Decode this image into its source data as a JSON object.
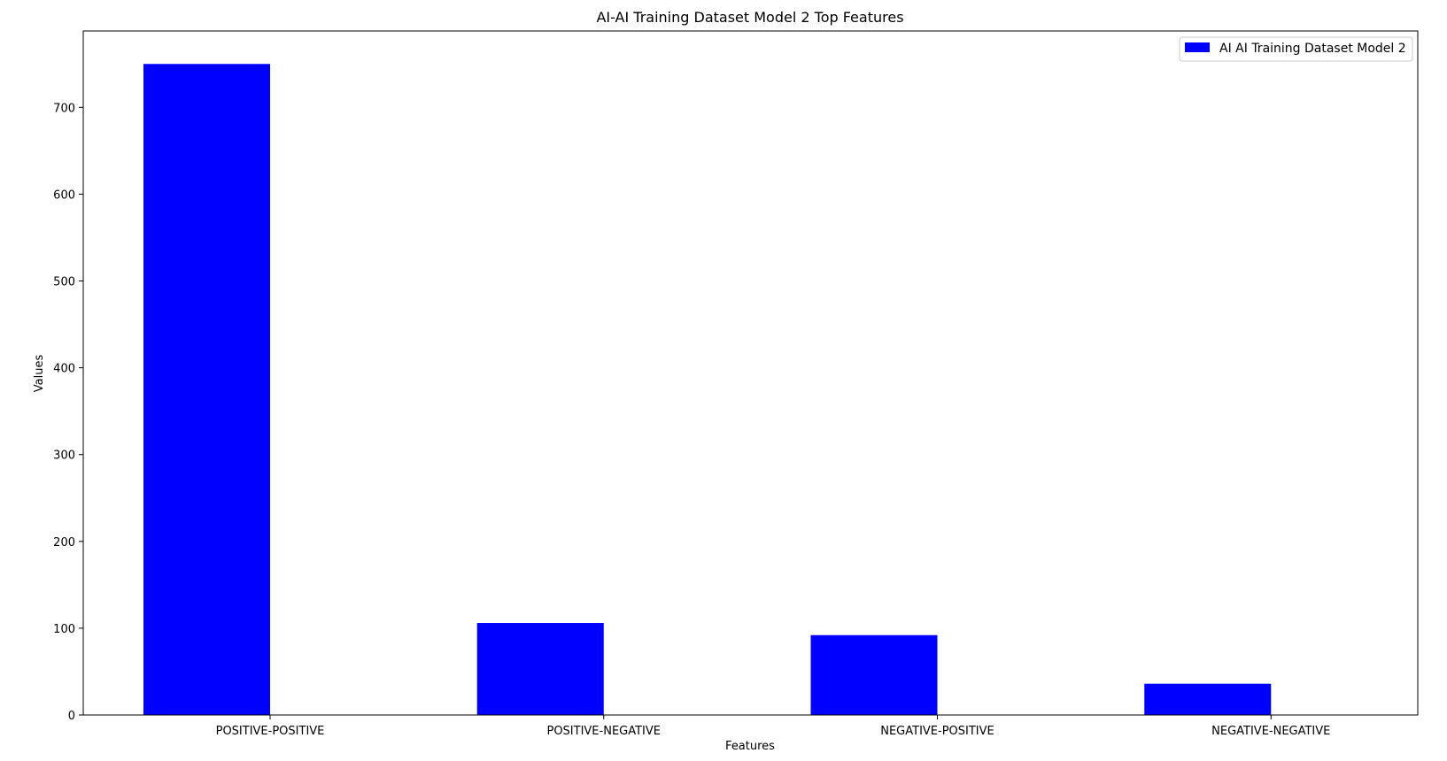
{
  "chart_data": {
    "type": "bar",
    "title": "AI-AI Training Dataset Model 2 Top Features",
    "xlabel": "Features",
    "ylabel": "Values",
    "categories": [
      "POSITIVE-POSITIVE",
      "POSITIVE-NEGATIVE",
      "NEGATIVE-POSITIVE",
      "NEGATIVE-NEGATIVE"
    ],
    "series": [
      {
        "name": "AI AI Training Dataset Model 2",
        "values": [
          750,
          106,
          92,
          36
        ],
        "color": "#0000ff"
      }
    ],
    "yticks": [
      0,
      100,
      200,
      300,
      400,
      500,
      600,
      700
    ],
    "ylim": [
      0,
      788
    ],
    "grid": false,
    "legend_position": "top-right"
  }
}
